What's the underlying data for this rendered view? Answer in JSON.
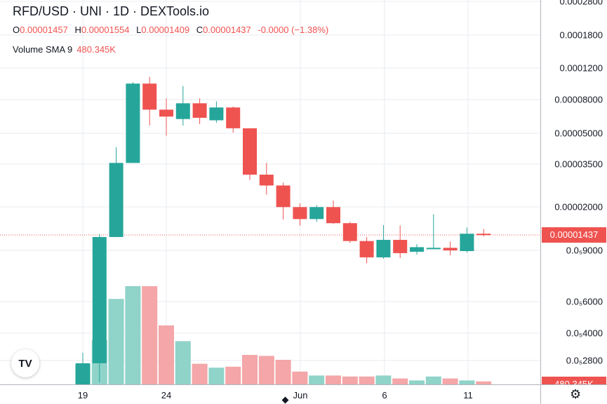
{
  "header": {
    "title": "RFD/USD · UNI · 1D · DEXTools.io",
    "ohlc": [
      {
        "key": "O",
        "value": "0.00001457"
      },
      {
        "key": "H",
        "value": "0.00001554"
      },
      {
        "key": "L",
        "value": "0.00001409"
      },
      {
        "key": "C",
        "value": "0.00001437"
      }
    ],
    "change": "-0.0000 (−1.38%)",
    "volume_label": "Volume SMA 9",
    "volume_value": "480.345K"
  },
  "price_axis": {
    "labels": [
      "0.0002800",
      "0.0001800",
      "0.0001200",
      "0.00008000",
      "0.00005000",
      "0.00003500",
      "0.00002000",
      "0.0₅9000",
      "0.0₅6000",
      "0.0₅4000",
      "0.0₅2800"
    ],
    "last_price": "0.00001437",
    "volume_tag": "480.345K"
  },
  "time_axis": {
    "labels": [
      "19",
      "24",
      "Jun",
      "6",
      "11"
    ]
  },
  "colors": {
    "up": "#26a69a",
    "down": "#ef5350",
    "up_vol": "#8fd3c9",
    "down_vol": "#f4a6a8",
    "grid": "#e9ebf0"
  },
  "logo": "TV",
  "chart_data": {
    "type": "candlestick",
    "scale": "log",
    "candles": [
      {
        "o": 2.1e-06,
        "h": 3.2e-06,
        "l": 1.8e-06,
        "c": 2.8e-06
      },
      {
        "o": 2.8e-06,
        "h": 1.45e-05,
        "l": 2.2e-06,
        "c": 1.4e-05
      },
      {
        "o": 1.4e-05,
        "h": 4.4e-05,
        "l": 1.4e-05,
        "c": 3.6e-05
      },
      {
        "o": 3.6e-05,
        "h": 0.000101,
        "l": 3.6e-05,
        "c": 9.9e-05
      },
      {
        "o": 9.9e-05,
        "h": 0.000108,
        "l": 5.8e-05,
        "c": 7.1e-05
      },
      {
        "o": 7.1e-05,
        "h": 8.2e-05,
        "l": 5.1e-05,
        "c": 6.5e-05
      },
      {
        "o": 6.3e-05,
        "h": 9.6e-05,
        "l": 5.8e-05,
        "c": 7.7e-05
      },
      {
        "o": 7.7e-05,
        "h": 8.2e-05,
        "l": 5.9e-05,
        "c": 6.4e-05
      },
      {
        "o": 6.2e-05,
        "h": 7.9e-05,
        "l": 6e-05,
        "c": 7.3e-05
      },
      {
        "o": 7.3e-05,
        "h": 7.4e-05,
        "l": 5.3e-05,
        "c": 5.6e-05
      },
      {
        "o": 5.6e-05,
        "h": 5.6e-05,
        "l": 2.9e-05,
        "c": 3.1e-05
      },
      {
        "o": 3.1e-05,
        "h": 3.6e-05,
        "l": 2.4e-05,
        "c": 2.7e-05
      },
      {
        "o": 2.7e-05,
        "h": 2.8e-05,
        "l": 1.75e-05,
        "c": 2.05e-05
      },
      {
        "o": 2.05e-05,
        "h": 2.15e-05,
        "l": 1.62e-05,
        "c": 1.76e-05
      },
      {
        "o": 1.76e-05,
        "h": 2.1e-05,
        "l": 1.7e-05,
        "c": 2.05e-05
      },
      {
        "o": 2.05e-05,
        "h": 2.23e-05,
        "l": 1.65e-05,
        "c": 1.67e-05
      },
      {
        "o": 1.67e-05,
        "h": 1.7e-05,
        "l": 1.3e-05,
        "c": 1.33e-05
      },
      {
        "o": 1.33e-05,
        "h": 1.4e-05,
        "l": 1e-05,
        "c": 1.08e-05
      },
      {
        "o": 1.08e-05,
        "h": 1.63e-05,
        "l": 1.06e-05,
        "c": 1.35e-05
      },
      {
        "o": 1.35e-05,
        "h": 1.62e-05,
        "l": 1.07e-05,
        "c": 1.14e-05
      },
      {
        "o": 1.16e-05,
        "h": 1.28e-05,
        "l": 1.12e-05,
        "c": 1.23e-05
      },
      {
        "o": 1.21e-05,
        "h": 1.87e-05,
        "l": 1.2e-05,
        "c": 1.22e-05
      },
      {
        "o": 1.22e-05,
        "h": 1.32e-05,
        "l": 1.11e-05,
        "c": 1.18e-05
      },
      {
        "o": 1.17e-05,
        "h": 1.58e-05,
        "l": 1.15e-05,
        "c": 1.46e-05
      },
      {
        "o": 1.46e-05,
        "h": 1.55e-05,
        "l": 1.41e-05,
        "c": 1.44e-05
      }
    ],
    "volume_relative": [
      0.21,
      0.45,
      0.87,
      1.0,
      1.0,
      0.6,
      0.44,
      0.21,
      0.17,
      0.18,
      0.3,
      0.29,
      0.25,
      0.13,
      0.09,
      0.09,
      0.08,
      0.08,
      0.09,
      0.06,
      0.04,
      0.08,
      0.06,
      0.04,
      0.03
    ]
  }
}
